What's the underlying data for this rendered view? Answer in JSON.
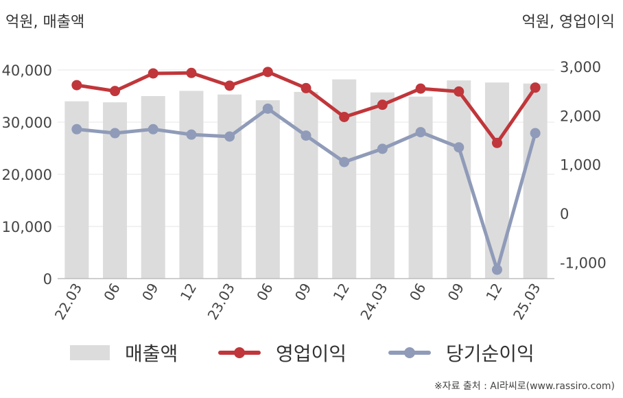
{
  "units": {
    "left": "억원, 매출액",
    "right": "억원, 영업이익"
  },
  "source": "※자료 출처 : AI라씨로(www.rassiro.com)",
  "colors": {
    "bar": "#dcdcdc",
    "op": "#c0363a",
    "net": "#8f9bb8",
    "grid": "#e6e6e6",
    "axis": "#bdbdbd"
  },
  "chart_data": {
    "type": "bar",
    "categories": [
      "22.03",
      "06",
      "09",
      "12",
      "23.03",
      "06",
      "09",
      "12",
      "24.03",
      "06",
      "09",
      "12",
      "25.03"
    ],
    "y_left": {
      "ylim": [
        0,
        40000
      ],
      "ticks": [
        0,
        10000,
        20000,
        30000,
        40000
      ],
      "tick_labels": [
        "0",
        "10,000",
        "20,000",
        "30,000",
        "40,000"
      ]
    },
    "y_right": {
      "ylim": [
        -1300,
        3000
      ],
      "ticks": [
        -1000,
        0,
        1000,
        2000,
        3000
      ],
      "tick_labels": [
        "-1,000",
        "0",
        "1,000",
        "2,000",
        "3,000"
      ]
    },
    "series": [
      {
        "name": "매출액",
        "type": "bar",
        "axis": "left",
        "values": [
          34000,
          33800,
          35000,
          36000,
          35300,
          34200,
          35800,
          38200,
          35700,
          34900,
          38000,
          37600,
          37400
        ]
      },
      {
        "name": "영업이익",
        "type": "line",
        "axis": "right",
        "values": [
          2620,
          2500,
          2860,
          2870,
          2610,
          2890,
          2560,
          1970,
          2220,
          2550,
          2490,
          1440,
          2570
        ]
      },
      {
        "name": "당기순이익",
        "type": "line",
        "axis": "right",
        "values": [
          1720,
          1640,
          1720,
          1610,
          1570,
          2140,
          1590,
          1050,
          1320,
          1660,
          1350,
          -1150,
          1640
        ]
      }
    ],
    "legend": "bottom",
    "grid": true
  }
}
